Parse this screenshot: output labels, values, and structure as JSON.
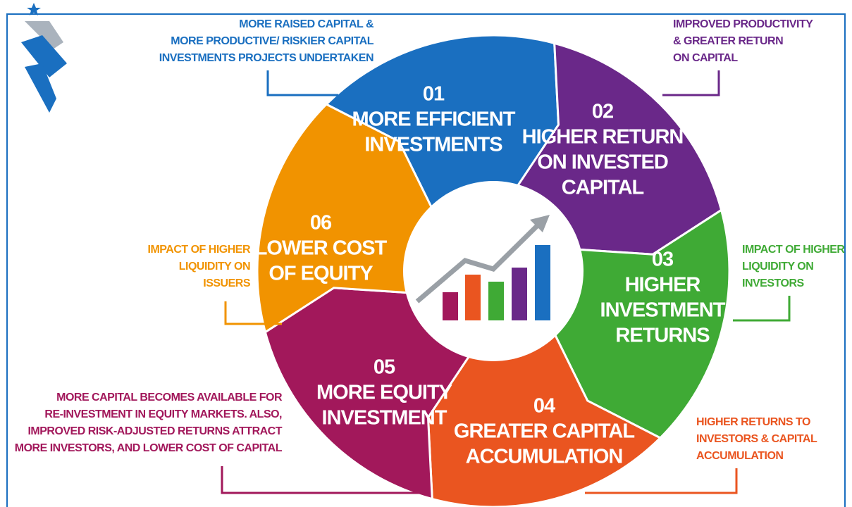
{
  "nodes": [
    {
      "number": "01",
      "title": [
        "MORE EFFICIENT",
        "INVESTMENTS"
      ],
      "note": [
        "MORE RAISED CAPITAL &",
        "MORE PRODUCTIVE/ RISKIER CAPITAL",
        "INVESTMENTS PROJECTS UNDERTAKEN"
      ],
      "color": "#1a6fc0"
    },
    {
      "number": "02",
      "title": [
        "HIGHER RETURN",
        "ON INVESTED",
        "CAPITAL"
      ],
      "note": [
        "IMPROVED PRODUCTIVITY",
        "& GREATER RETURN",
        "ON CAPITAL"
      ],
      "color": "#6a2889"
    },
    {
      "number": "03",
      "title": [
        "HIGHER",
        "INVESTMENT",
        "RETURNS"
      ],
      "note": [
        "IMPACT OF HIGHER",
        "LIQUIDITY ON",
        "INVESTORS"
      ],
      "color": "#3faa35"
    },
    {
      "number": "04",
      "title": [
        "GREATER CAPITAL",
        "ACCUMULATION"
      ],
      "note": [
        "HIGHER RETURNS TO",
        "INVESTORS & CAPITAL",
        "ACCUMULATION"
      ],
      "color": "#ea5520"
    },
    {
      "number": "05",
      "title": [
        "MORE EQUITY",
        "INVESTMENT"
      ],
      "note": [
        "MORE CAPITAL BECOMES AVAILABLE FOR",
        "RE-INVESTMENT IN EQUITY MARKETS. ALSO,",
        "IMPROVED RISK-ADJUSTED RETURNS ATTRACT",
        "MORE INVESTORS, AND LOWER COST OF CAPITAL"
      ],
      "color": "#a2185b"
    },
    {
      "number": "06",
      "title": [
        "LOWER COST",
        "OF EQUITY"
      ],
      "note": [
        "IMPACT OF HIGHER",
        "LIQUIDITY ON",
        "ISSUERS"
      ],
      "color": "#f19300"
    }
  ]
}
